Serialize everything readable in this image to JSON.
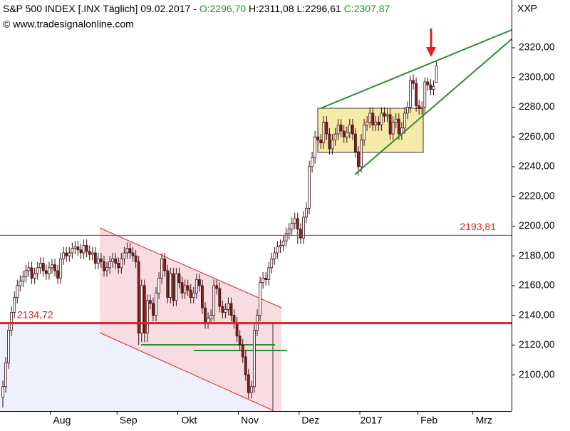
{
  "header": {
    "title": "S&P 500 INDEX [.INX Täglich] 09.02.2017 -",
    "open_label": "O:2296,70",
    "high_label": "H:2311,08",
    "low_label": "L:2296,61",
    "close_label": "C:2307,87",
    "copyright": "© www.tradesignalonline.com",
    "symbol": "XXP"
  },
  "chart_data": {
    "type": "candlestick",
    "up_color": "#ffffff",
    "down_color": "#8b1a1a",
    "outline_color": "#3a1010",
    "ylim": [
      2075.6,
      2352.1
    ],
    "yticks": [
      {
        "value": 2100,
        "label": "2100,00"
      },
      {
        "value": 2120,
        "label": "2120,00"
      },
      {
        "value": 2140,
        "label": "2140,00"
      },
      {
        "value": 2160,
        "label": "2160,00"
      },
      {
        "value": 2180,
        "label": "2180,00"
      },
      {
        "value": 2200,
        "label": "2200,00"
      },
      {
        "value": 2220,
        "label": "2220,00"
      },
      {
        "value": 2240,
        "label": "2240,00"
      },
      {
        "value": 2260,
        "label": "2260,00"
      },
      {
        "value": 2280,
        "label": "2280,00"
      },
      {
        "value": 2300,
        "label": "2300,00"
      },
      {
        "value": 2320,
        "label": "2320,00"
      }
    ],
    "annotations": [
      {
        "value": 2193.81,
        "label": "2193,81",
        "color": "#e02020"
      },
      {
        "value": 2134.72,
        "label": "2134,72",
        "color": "#e02020"
      }
    ],
    "categories": [
      null,
      null,
      null,
      null,
      null,
      null,
      null,
      null,
      null,
      null,
      null,
      null,
      null,
      null,
      null,
      null,
      null,
      "Aug",
      null,
      null,
      null,
      null,
      null,
      null,
      null,
      null,
      null,
      null,
      null,
      null,
      null,
      null,
      null,
      null,
      null,
      null,
      null,
      null,
      null,
      null,
      "Sep",
      null,
      null,
      null,
      null,
      null,
      null,
      null,
      null,
      null,
      null,
      null,
      null,
      null,
      null,
      null,
      null,
      null,
      null,
      null,
      null,
      "Okt",
      null,
      null,
      null,
      null,
      null,
      null,
      null,
      null,
      null,
      null,
      null,
      null,
      null,
      null,
      null,
      null,
      null,
      null,
      null,
      null,
      "Nov",
      null,
      null,
      null,
      null,
      null,
      null,
      null,
      null,
      null,
      null,
      null,
      null,
      null,
      null,
      null,
      null,
      null,
      null,
      null,
      null,
      "Dez",
      null,
      null,
      null,
      null,
      null,
      null,
      null,
      null,
      null,
      null,
      null,
      null,
      null,
      null,
      null,
      null,
      null,
      null,
      null,
      null,
      "2017",
      null,
      null,
      null,
      null,
      null,
      null,
      null,
      null,
      null,
      null,
      null,
      null,
      null,
      null,
      null,
      null,
      null,
      null,
      null,
      "Feb",
      null,
      null,
      null,
      null,
      null,
      null,
      null,
      null,
      null,
      null,
      null,
      null,
      null,
      null,
      null,
      null,
      null,
      null,
      "Mrz",
      null,
      null,
      null,
      null,
      null,
      null,
      null,
      null,
      null,
      null,
      null,
      null
    ],
    "open": [
      2085,
      2092,
      2108,
      2130,
      2142,
      2152,
      2160,
      2163,
      2166,
      2170,
      2172,
      2165,
      2168,
      2172,
      2175,
      2170,
      2168,
      2172,
      2174,
      2170,
      2165,
      2178,
      2182,
      2180,
      2182,
      2185,
      2186,
      2184,
      2182,
      2187,
      2183,
      2181,
      2182,
      2175,
      2178,
      2176,
      2170,
      2172,
      2176,
      2178,
      2175,
      2172,
      2178,
      2182,
      2185,
      2182,
      2180,
      2176,
      2128,
      2160,
      2128,
      2150,
      2148,
      2140,
      2155,
      2165,
      2178,
      2170,
      2152,
      2168,
      2150,
      2168,
      2162,
      2155,
      2160,
      2157,
      2152,
      2155,
      2164,
      2160,
      2145,
      2135,
      2138,
      2140,
      2160,
      2158,
      2146,
      2142,
      2144,
      2148,
      2140,
      2135,
      2126,
      2120,
      2112,
      2100,
      2088,
      2092,
      2130,
      2140,
      2162,
      2165,
      2164,
      2172,
      2178,
      2182,
      2186,
      2187,
      2190,
      2195,
      2198,
      2202,
      2205,
      2198,
      2192,
      2206,
      2212,
      2240,
      2246,
      2260,
      2258,
      2256,
      2270,
      2262,
      2252,
      2258,
      2262,
      2268,
      2264,
      2260,
      2263,
      2268,
      2262,
      2250,
      2240,
      2258,
      2268,
      2270,
      2276,
      2268,
      2270,
      2268,
      2276,
      2274,
      2275,
      2262,
      2270,
      2272,
      2262,
      2266,
      2276,
      2280,
      2298,
      2296,
      2281,
      2279,
      2280,
      2297,
      2295,
      2292,
      2296.7,
      null,
      null,
      null,
      null,
      null,
      null,
      null,
      null,
      null,
      null,
      null,
      null,
      null,
      null,
      null,
      null,
      null,
      null,
      null,
      null,
      null,
      null,
      null,
      null,
      null
    ],
    "high": [
      2096,
      2112,
      2134,
      2146,
      2156,
      2164,
      2167,
      2170,
      2174,
      2176,
      2176,
      2172,
      2176,
      2179,
      2179,
      2174,
      2176,
      2178,
      2178,
      2174,
      2182,
      2186,
      2186,
      2186,
      2189,
      2190,
      2190,
      2188,
      2191,
      2191,
      2187,
      2186,
      2186,
      2182,
      2182,
      2180,
      2176,
      2180,
      2182,
      2182,
      2179,
      2182,
      2186,
      2189,
      2189,
      2186,
      2184,
      2180,
      2164,
      2164,
      2154,
      2154,
      2152,
      2159,
      2169,
      2182,
      2182,
      2174,
      2172,
      2172,
      2172,
      2172,
      2166,
      2164,
      2164,
      2161,
      2159,
      2168,
      2168,
      2164,
      2149,
      2142,
      2144,
      2164,
      2164,
      2162,
      2150,
      2148,
      2152,
      2152,
      2144,
      2139,
      2130,
      2124,
      2116,
      2104,
      2096,
      2134,
      2144,
      2166,
      2169,
      2169,
      2176,
      2182,
      2186,
      2190,
      2191,
      2194,
      2199,
      2202,
      2206,
      2209,
      2209,
      2202,
      2210,
      2216,
      2244,
      2250,
      2264,
      2264,
      2262,
      2274,
      2274,
      2266,
      2262,
      2266,
      2272,
      2272,
      2268,
      2267,
      2272,
      2272,
      2266,
      2254,
      2262,
      2272,
      2274,
      2280,
      2280,
      2274,
      2274,
      2280,
      2280,
      2279,
      2279,
      2274,
      2276,
      2276,
      2270,
      2280,
      2284,
      2301,
      2302,
      2300,
      2285,
      2284,
      2300,
      2300,
      2299,
      2298,
      2311.08,
      null,
      null,
      null,
      null,
      null,
      null,
      null,
      null,
      null,
      null,
      null,
      null,
      null,
      null,
      null,
      null,
      null,
      null,
      null,
      null,
      null,
      null,
      null,
      null,
      null
    ],
    "low": [
      2078,
      2088,
      2104,
      2126,
      2138,
      2148,
      2156,
      2159,
      2162,
      2166,
      2161,
      2161,
      2164,
      2168,
      2166,
      2164,
      2164,
      2168,
      2166,
      2161,
      2161,
      2174,
      2176,
      2176,
      2178,
      2181,
      2180,
      2178,
      2178,
      2179,
      2177,
      2177,
      2171,
      2171,
      2172,
      2166,
      2166,
      2168,
      2172,
      2171,
      2168,
      2168,
      2174,
      2178,
      2178,
      2176,
      2172,
      2120,
      2122,
      2122,
      2122,
      2144,
      2136,
      2136,
      2151,
      2161,
      2166,
      2148,
      2148,
      2146,
      2146,
      2158,
      2151,
      2151,
      2153,
      2148,
      2148,
      2151,
      2156,
      2141,
      2131,
      2131,
      2134,
      2136,
      2154,
      2142,
      2138,
      2138,
      2140,
      2136,
      2131,
      2122,
      2116,
      2108,
      2096,
      2084,
      2084,
      2088,
      2126,
      2136,
      2158,
      2160,
      2160,
      2168,
      2174,
      2178,
      2182,
      2183,
      2186,
      2191,
      2194,
      2198,
      2188,
      2188,
      2188,
      2202,
      2208,
      2236,
      2242,
      2254,
      2252,
      2252,
      2258,
      2248,
      2248,
      2254,
      2258,
      2260,
      2256,
      2256,
      2259,
      2258,
      2246,
      2234,
      2236,
      2254,
      2264,
      2266,
      2264,
      2264,
      2264,
      2264,
      2270,
      2270,
      2258,
      2258,
      2266,
      2258,
      2258,
      2262,
      2272,
      2276,
      2292,
      2277,
      2275,
      2275,
      2276,
      2291,
      2288,
      2288,
      2296.61,
      null,
      null,
      null,
      null,
      null,
      null,
      null,
      null,
      null,
      null,
      null,
      null,
      null,
      null,
      null,
      null,
      null,
      null,
      null,
      null,
      null,
      null,
      null,
      null,
      null
    ],
    "close": [
      2092,
      2108,
      2130,
      2142,
      2152,
      2160,
      2163,
      2166,
      2170,
      2172,
      2165,
      2168,
      2172,
      2175,
      2170,
      2168,
      2172,
      2174,
      2170,
      2165,
      2178,
      2182,
      2180,
      2182,
      2185,
      2186,
      2184,
      2182,
      2187,
      2183,
      2181,
      2182,
      2175,
      2178,
      2176,
      2170,
      2172,
      2176,
      2178,
      2175,
      2172,
      2178,
      2182,
      2185,
      2182,
      2180,
      2176,
      2128,
      2160,
      2128,
      2150,
      2148,
      2140,
      2155,
      2165,
      2178,
      2170,
      2152,
      2168,
      2150,
      2168,
      2162,
      2155,
      2160,
      2157,
      2152,
      2155,
      2164,
      2160,
      2145,
      2135,
      2138,
      2140,
      2160,
      2158,
      2146,
      2142,
      2144,
      2148,
      2140,
      2135,
      2126,
      2120,
      2112,
      2100,
      2088,
      2092,
      2130,
      2140,
      2162,
      2165,
      2164,
      2172,
      2178,
      2182,
      2186,
      2187,
      2190,
      2195,
      2198,
      2202,
      2205,
      2198,
      2192,
      2206,
      2212,
      2240,
      2246,
      2260,
      2258,
      2256,
      2270,
      2262,
      2252,
      2258,
      2262,
      2268,
      2264,
      2260,
      2263,
      2268,
      2262,
      2250,
      2240,
      2258,
      2268,
      2270,
      2276,
      2268,
      2270,
      2268,
      2276,
      2274,
      2275,
      2262,
      2270,
      2272,
      2262,
      2266,
      2276,
      2280,
      2298,
      2296,
      2281,
      2279,
      2280,
      2297,
      2295,
      2292,
      2294,
      2307.87,
      null,
      null,
      null,
      null,
      null,
      null,
      null,
      null,
      null,
      null,
      null,
      null,
      null,
      null,
      null,
      null,
      null,
      null,
      null,
      null,
      null,
      null,
      null,
      null,
      null
    ]
  }
}
